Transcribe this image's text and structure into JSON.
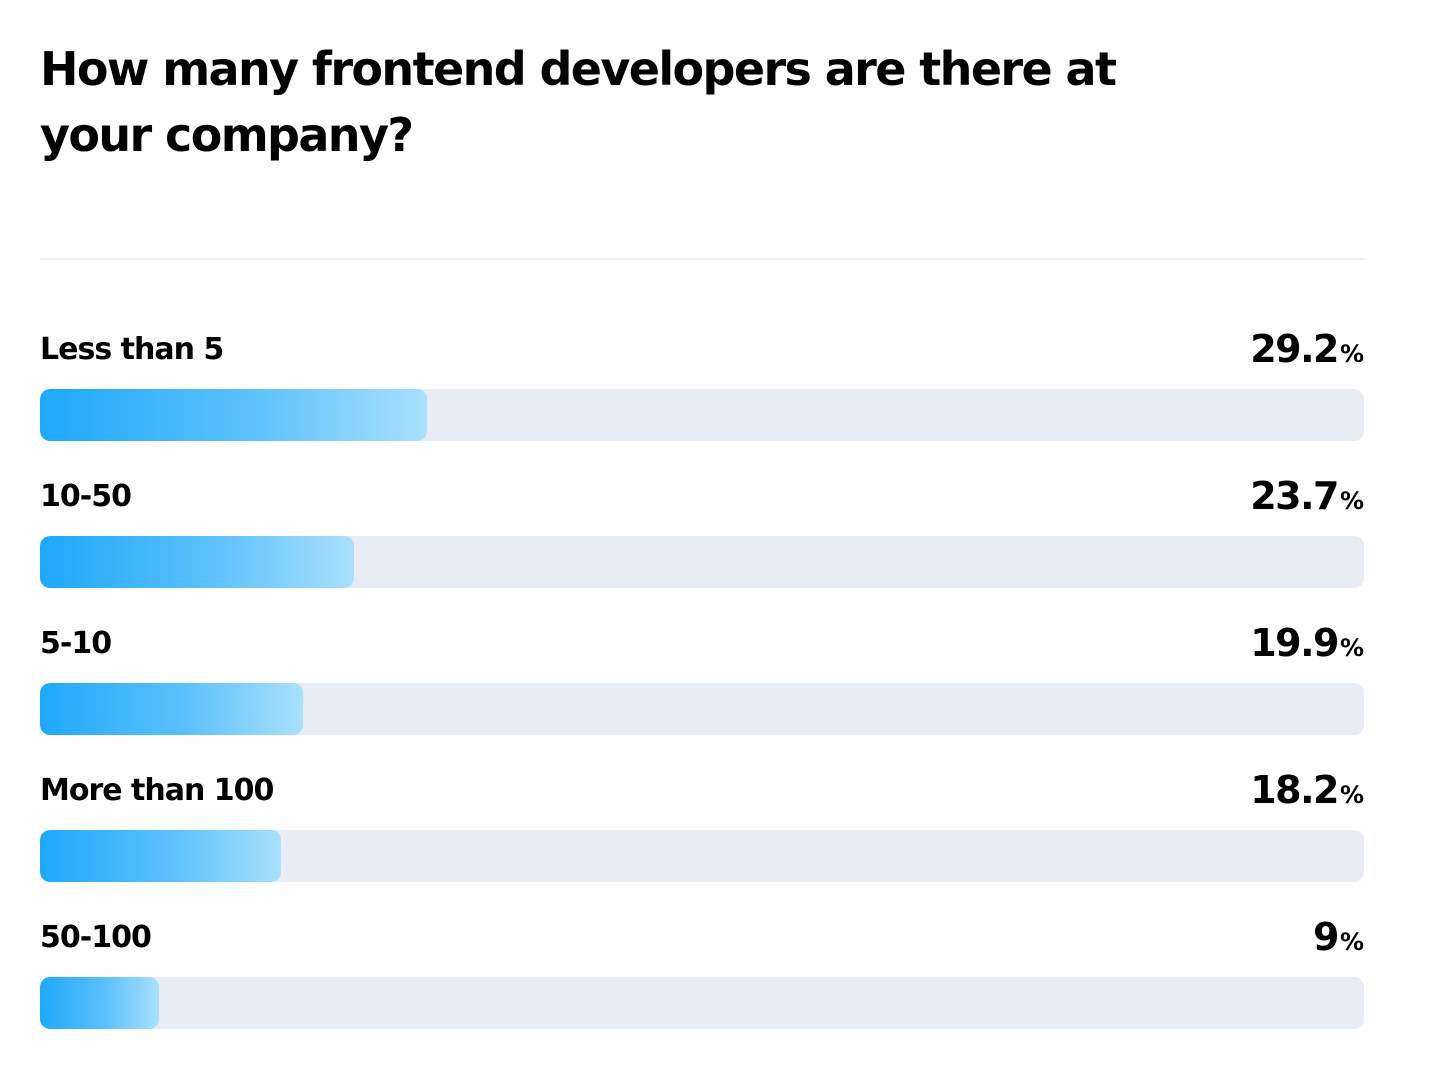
{
  "chart_data": {
    "type": "bar",
    "orientation": "horizontal",
    "title": "How many frontend developers are there at your company?",
    "categories": [
      "Less than 5",
      "10-50",
      "5-10",
      "More than 100",
      "50-100"
    ],
    "values": [
      29.2,
      23.7,
      19.9,
      18.2,
      9
    ],
    "value_labels": [
      "29.2",
      "23.7",
      "19.9",
      "18.2",
      "9"
    ],
    "unit": "%",
    "xlim": [
      0,
      100
    ],
    "grid": false,
    "legend": "none"
  },
  "colors": {
    "bar_start": "#1ea8fb",
    "bar_end": "#a9e0fd",
    "track": "#e8ecf5",
    "divider": "#eceef4",
    "text": "#000000"
  }
}
